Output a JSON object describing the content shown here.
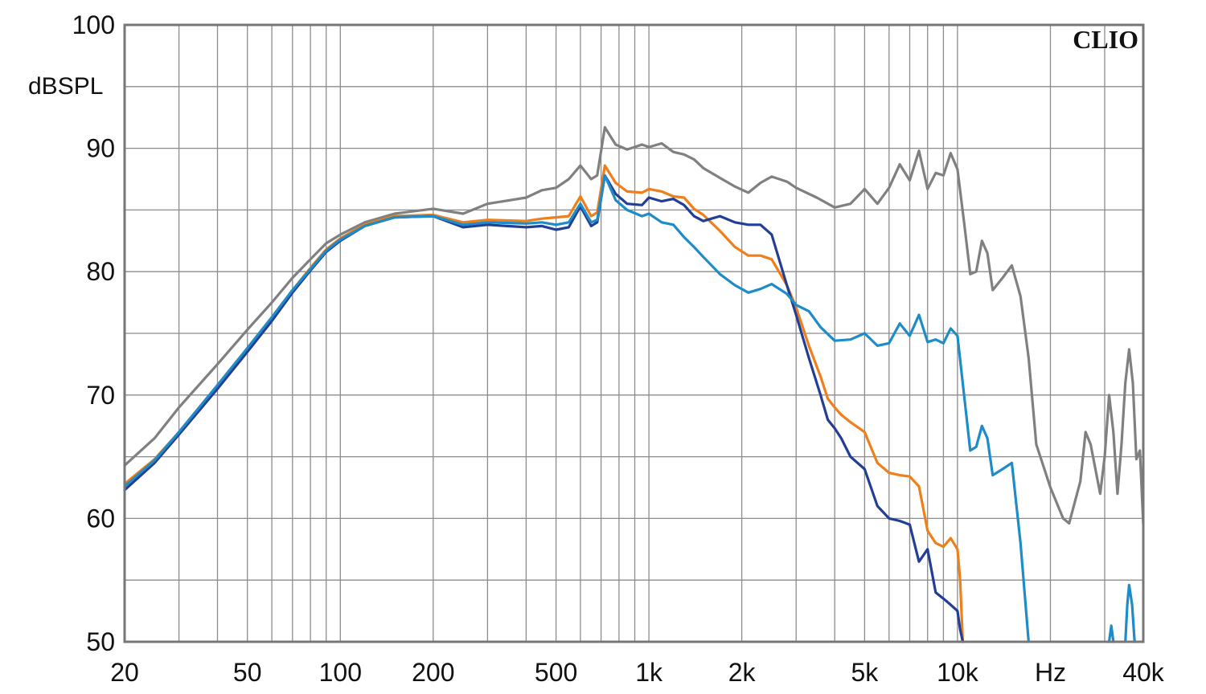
{
  "chart_data": {
    "type": "line",
    "brand": "CLIO",
    "ylabel": "dBSPL",
    "xscale": "log",
    "xlim": [
      20,
      40000
    ],
    "ylim": [
      50,
      100
    ],
    "grid": true,
    "legend": "none",
    "x_tick_labels": [
      {
        "value": 20,
        "label": "20"
      },
      {
        "value": 50,
        "label": "50"
      },
      {
        "value": 100,
        "label": "100"
      },
      {
        "value": 200,
        "label": "200"
      },
      {
        "value": 500,
        "label": "500"
      },
      {
        "value": 1000,
        "label": "1k"
      },
      {
        "value": 2000,
        "label": "2k"
      },
      {
        "value": 5000,
        "label": "5k"
      },
      {
        "value": 10000,
        "label": "10k"
      },
      {
        "value": 20000,
        "label": "Hz"
      },
      {
        "value": 40000,
        "label": "40k"
      }
    ],
    "y_tick_labels": [
      {
        "value": 50,
        "label": "50"
      },
      {
        "value": 60,
        "label": "60"
      },
      {
        "value": 70,
        "label": "70"
      },
      {
        "value": 80,
        "label": "80"
      },
      {
        "value": 90,
        "label": "90"
      },
      {
        "value": 100,
        "label": "100"
      }
    ],
    "series": [
      {
        "color": "#808080",
        "points": [
          [
            20,
            64.3
          ],
          [
            25,
            66.5
          ],
          [
            30,
            69
          ],
          [
            40,
            72.5
          ],
          [
            50,
            75.3
          ],
          [
            60,
            77.5
          ],
          [
            70,
            79.5
          ],
          [
            80,
            81
          ],
          [
            90,
            82.3
          ],
          [
            100,
            83
          ],
          [
            120,
            84
          ],
          [
            150,
            84.7
          ],
          [
            200,
            85.1
          ],
          [
            250,
            84.7
          ],
          [
            300,
            85.5
          ],
          [
            400,
            86
          ],
          [
            450,
            86.6
          ],
          [
            500,
            86.8
          ],
          [
            550,
            87.5
          ],
          [
            600,
            88.6
          ],
          [
            650,
            87.5
          ],
          [
            680,
            87.8
          ],
          [
            720,
            91.7
          ],
          [
            780,
            90.3
          ],
          [
            850,
            89.9
          ],
          [
            950,
            90.3
          ],
          [
            1000,
            90.1
          ],
          [
            1100,
            90.4
          ],
          [
            1200,
            89.7
          ],
          [
            1300,
            89.5
          ],
          [
            1400,
            89.1
          ],
          [
            1500,
            88.4
          ],
          [
            1700,
            87.6
          ],
          [
            1900,
            86.9
          ],
          [
            2100,
            86.4
          ],
          [
            2300,
            87.2
          ],
          [
            2500,
            87.7
          ],
          [
            2800,
            87.3
          ],
          [
            3000,
            86.8
          ],
          [
            3500,
            86
          ],
          [
            4000,
            85.2
          ],
          [
            4500,
            85.5
          ],
          [
            5000,
            86.7
          ],
          [
            5500,
            85.5
          ],
          [
            6000,
            86.8
          ],
          [
            6500,
            88.7
          ],
          [
            7000,
            87.4
          ],
          [
            7500,
            89.8
          ],
          [
            8000,
            86.7
          ],
          [
            8500,
            88
          ],
          [
            9000,
            87.8
          ],
          [
            9500,
            89.6
          ],
          [
            10000,
            88.3
          ],
          [
            10500,
            84
          ],
          [
            11000,
            79.8
          ],
          [
            11500,
            80
          ],
          [
            12000,
            82.5
          ],
          [
            12500,
            81.5
          ],
          [
            13000,
            78.5
          ],
          [
            14000,
            79.5
          ],
          [
            15000,
            80.5
          ],
          [
            16000,
            78
          ],
          [
            17000,
            73
          ],
          [
            18000,
            66
          ],
          [
            20000,
            62.5
          ],
          [
            22000,
            60
          ],
          [
            23000,
            59.6
          ],
          [
            25000,
            63
          ],
          [
            26000,
            67
          ],
          [
            27000,
            66
          ],
          [
            29000,
            62
          ],
          [
            30000,
            65
          ],
          [
            31000,
            70
          ],
          [
            32000,
            67
          ],
          [
            33000,
            62
          ],
          [
            34000,
            66
          ],
          [
            35000,
            71
          ],
          [
            36000,
            73.7
          ],
          [
            37000,
            71
          ],
          [
            38000,
            64.8
          ],
          [
            39000,
            65.5
          ],
          [
            40000,
            59.5
          ]
        ]
      },
      {
        "color": "#ee7f1a",
        "points": [
          [
            20,
            62.8
          ],
          [
            25,
            64.8
          ],
          [
            30,
            67
          ],
          [
            40,
            70.8
          ],
          [
            50,
            73.8
          ],
          [
            60,
            76.3
          ],
          [
            70,
            78.5
          ],
          [
            80,
            80.3
          ],
          [
            90,
            81.8
          ],
          [
            100,
            82.7
          ],
          [
            120,
            83.8
          ],
          [
            150,
            84.5
          ],
          [
            200,
            84.6
          ],
          [
            250,
            84
          ],
          [
            300,
            84.2
          ],
          [
            400,
            84.1
          ],
          [
            450,
            84.3
          ],
          [
            500,
            84.4
          ],
          [
            550,
            84.5
          ],
          [
            600,
            86.1
          ],
          [
            650,
            84.5
          ],
          [
            680,
            84.8
          ],
          [
            720,
            88.6
          ],
          [
            780,
            87.2
          ],
          [
            850,
            86.5
          ],
          [
            950,
            86.4
          ],
          [
            1000,
            86.7
          ],
          [
            1100,
            86.5
          ],
          [
            1200,
            86.1
          ],
          [
            1300,
            86
          ],
          [
            1400,
            85.1
          ],
          [
            1500,
            84.6
          ],
          [
            1700,
            83.3
          ],
          [
            1900,
            82
          ],
          [
            2100,
            81.3
          ],
          [
            2300,
            81.3
          ],
          [
            2500,
            81
          ],
          [
            2800,
            78.9
          ],
          [
            3000,
            77.1
          ],
          [
            3300,
            74
          ],
          [
            3600,
            71.5
          ],
          [
            3800,
            69.7
          ],
          [
            4000,
            69
          ],
          [
            4200,
            68.4
          ],
          [
            4500,
            67.8
          ],
          [
            5000,
            67
          ],
          [
            5500,
            64.5
          ],
          [
            6000,
            63.7
          ],
          [
            6500,
            63.5
          ],
          [
            7000,
            63.4
          ],
          [
            7500,
            62.6
          ],
          [
            8000,
            59
          ],
          [
            8500,
            58
          ],
          [
            9000,
            57.7
          ],
          [
            9500,
            58.4
          ],
          [
            10000,
            57.5
          ],
          [
            10200,
            55
          ],
          [
            10400,
            50
          ]
        ]
      },
      {
        "color": "#233e96",
        "points": [
          [
            20,
            62.3
          ],
          [
            25,
            64.5
          ],
          [
            30,
            66.8
          ],
          [
            40,
            70.5
          ],
          [
            50,
            73.5
          ],
          [
            60,
            76
          ],
          [
            70,
            78.3
          ],
          [
            80,
            80.1
          ],
          [
            90,
            81.6
          ],
          [
            100,
            82.5
          ],
          [
            120,
            83.7
          ],
          [
            150,
            84.4
          ],
          [
            200,
            84.5
          ],
          [
            250,
            83.6
          ],
          [
            300,
            83.8
          ],
          [
            400,
            83.6
          ],
          [
            450,
            83.7
          ],
          [
            500,
            83.4
          ],
          [
            550,
            83.6
          ],
          [
            600,
            85.3
          ],
          [
            650,
            83.7
          ],
          [
            680,
            84
          ],
          [
            720,
            87.8
          ],
          [
            780,
            86.3
          ],
          [
            850,
            85.5
          ],
          [
            950,
            85.4
          ],
          [
            1000,
            86
          ],
          [
            1100,
            85.7
          ],
          [
            1200,
            85.9
          ],
          [
            1300,
            85.4
          ],
          [
            1400,
            84.5
          ],
          [
            1500,
            84.1
          ],
          [
            1700,
            84.5
          ],
          [
            1900,
            84
          ],
          [
            2100,
            83.8
          ],
          [
            2300,
            83.8
          ],
          [
            2500,
            83
          ],
          [
            2800,
            78.9
          ],
          [
            3000,
            76.5
          ],
          [
            3300,
            73
          ],
          [
            3600,
            70
          ],
          [
            3800,
            68
          ],
          [
            4000,
            67.3
          ],
          [
            4200,
            66.5
          ],
          [
            4500,
            65
          ],
          [
            5000,
            64
          ],
          [
            5500,
            61
          ],
          [
            6000,
            60
          ],
          [
            6500,
            59.8
          ],
          [
            7000,
            59.5
          ],
          [
            7500,
            56.5
          ],
          [
            8000,
            57.5
          ],
          [
            8500,
            54
          ],
          [
            9000,
            53.5
          ],
          [
            9500,
            53
          ],
          [
            10000,
            52.5
          ],
          [
            10200,
            51
          ],
          [
            10400,
            50
          ]
        ]
      },
      {
        "color": "#1e8cc8",
        "points": [
          [
            20,
            62.6
          ],
          [
            25,
            64.7
          ],
          [
            30,
            67
          ],
          [
            40,
            70.8
          ],
          [
            50,
            73.8
          ],
          [
            60,
            76.3
          ],
          [
            70,
            78.5
          ],
          [
            80,
            80.2
          ],
          [
            90,
            81.7
          ],
          [
            100,
            82.6
          ],
          [
            120,
            83.7
          ],
          [
            150,
            84.4
          ],
          [
            200,
            84.5
          ],
          [
            250,
            83.8
          ],
          [
            300,
            84
          ],
          [
            400,
            83.9
          ],
          [
            450,
            84
          ],
          [
            500,
            83.8
          ],
          [
            550,
            84
          ],
          [
            600,
            85.5
          ],
          [
            650,
            84
          ],
          [
            680,
            84.2
          ],
          [
            720,
            87.8
          ],
          [
            780,
            85.8
          ],
          [
            850,
            85
          ],
          [
            950,
            84.5
          ],
          [
            1000,
            84.7
          ],
          [
            1100,
            84
          ],
          [
            1200,
            83.8
          ],
          [
            1300,
            82.8
          ],
          [
            1400,
            82
          ],
          [
            1500,
            81.2
          ],
          [
            1700,
            79.8
          ],
          [
            1900,
            78.9
          ],
          [
            2100,
            78.3
          ],
          [
            2300,
            78.6
          ],
          [
            2500,
            79
          ],
          [
            2800,
            78.2
          ],
          [
            3000,
            77.3
          ],
          [
            3300,
            76.8
          ],
          [
            3600,
            75.5
          ],
          [
            4000,
            74.4
          ],
          [
            4500,
            74.5
          ],
          [
            5000,
            75
          ],
          [
            5500,
            74
          ],
          [
            6000,
            74.2
          ],
          [
            6500,
            75.8
          ],
          [
            7000,
            74.8
          ],
          [
            7500,
            76.5
          ],
          [
            8000,
            74.3
          ],
          [
            8500,
            74.5
          ],
          [
            9000,
            74.2
          ],
          [
            9500,
            75.4
          ],
          [
            10000,
            74.8
          ],
          [
            10500,
            70
          ],
          [
            11000,
            65.5
          ],
          [
            11500,
            65.8
          ],
          [
            12000,
            67.5
          ],
          [
            12500,
            66.5
          ],
          [
            13000,
            63.5
          ],
          [
            14000,
            64
          ],
          [
            15000,
            64.5
          ],
          [
            16000,
            58
          ],
          [
            17000,
            50
          ]
        ]
      },
      {
        "color": "#1e8cc8",
        "points": [
          [
            31000,
            50
          ],
          [
            31500,
            51.3
          ],
          [
            32000,
            50
          ]
        ]
      },
      {
        "color": "#1e8cc8",
        "points": [
          [
            35000,
            50
          ],
          [
            35500,
            53
          ],
          [
            36000,
            54.6
          ],
          [
            36800,
            53
          ],
          [
            37500,
            50
          ]
        ]
      }
    ]
  }
}
